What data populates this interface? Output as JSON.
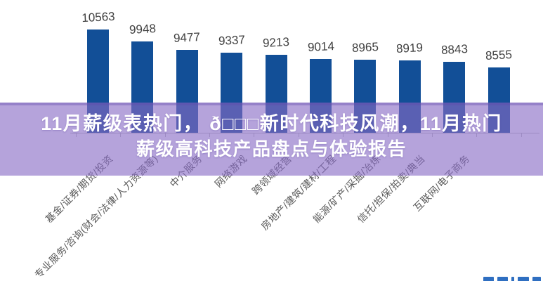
{
  "banner": {
    "line1": "11月薪级表热门， ð□□□新时代科技风潮，11月热门",
    "line2": "薪级高科技产品盘点与体验报告",
    "overlay_color": "rgba(135,107,197,0.62)",
    "text_color": "#ffffff"
  },
  "chart_data": {
    "type": "bar",
    "title": "",
    "xlabel": "",
    "ylabel": "",
    "categories": [
      "基金/证券/期货/投资",
      "专业服务/咨询(财会/法律/人力资源等)",
      "中介服务",
      "网络游戏",
      "跨领域经营",
      "房地产/建筑/建材/工程",
      "能源/矿产/采掘/冶炼",
      "信托/担保/拍卖/典当",
      "互联网/电子商务",
      ""
    ],
    "values": [
      10563,
      9948,
      9477,
      9337,
      9213,
      9014,
      8965,
      8919,
      8843,
      8555
    ],
    "data_labels_shown": true,
    "grid": false,
    "legend": false,
    "ylim": [
      5100,
      11000
    ],
    "bar_color": "#124f97",
    "value_label_color": "#404040",
    "category_label_color": "#595959",
    "axis_color": "#c0c0c0"
  },
  "watermark": {
    "color": "#2f6fc1"
  }
}
